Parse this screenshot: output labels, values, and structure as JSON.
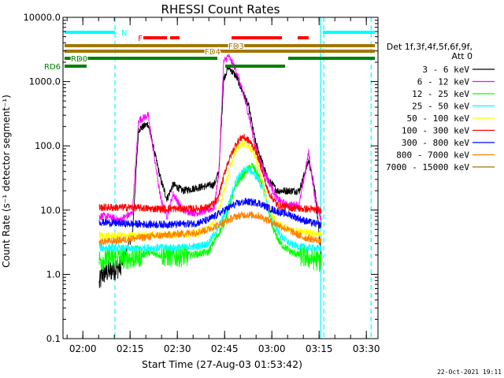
{
  "chart_data": {
    "type": "line",
    "title": "RHESSI Count Rates",
    "xlabel": "Start Time (27-Aug-03 01:53:42)",
    "ylabel": "Count Rate (s⁻¹ detector segment⁻¹)",
    "yscale": "log",
    "ylim": [
      0.1,
      10000
    ],
    "xlim_minutes": [
      0,
      100
    ],
    "x_ticks": [
      {
        "t": 6.3,
        "label": "02:00"
      },
      {
        "t": 21.3,
        "label": "02:15"
      },
      {
        "t": 36.3,
        "label": "02:30"
      },
      {
        "t": 51.3,
        "label": "02:45"
      },
      {
        "t": 66.3,
        "label": "03:00"
      },
      {
        "t": 81.3,
        "label": "03:15"
      },
      {
        "t": 96.3,
        "label": "03:30"
      }
    ],
    "y_ticks": [
      {
        "v": 0.1,
        "label": "0.1"
      },
      {
        "v": 1,
        "label": "1.0"
      },
      {
        "v": 10,
        "label": "10.0"
      },
      {
        "v": 100,
        "label": "100.0"
      },
      {
        "v": 1000,
        "label": "1000.0"
      },
      {
        "v": 10000,
        "label": "10000.0"
      }
    ],
    "legend": {
      "header": [
        "Det 1f,3f,4f,5f,6f,9f,",
        "Att 0"
      ],
      "placement": "right"
    },
    "series": [
      {
        "name": "3 - 6 keV",
        "color": "#000000",
        "t": [
          11.5,
          12.5,
          14,
          18,
          22,
          24,
          27,
          31,
          33,
          35,
          38,
          42,
          46,
          48,
          49.5,
          51,
          52.5,
          55,
          57,
          59,
          61,
          63,
          65,
          66.5,
          68,
          71,
          75,
          78,
          80,
          82
        ],
        "values": [
          0.7,
          1.0,
          1.1,
          1.3,
          4.0,
          180,
          220,
          30,
          15,
          25,
          20,
          22,
          24,
          25,
          40,
          1100,
          1700,
          1200,
          700,
          400,
          120,
          60,
          30,
          25,
          20,
          20,
          20,
          60,
          20,
          2.0
        ]
      },
      {
        "name": "6 - 12 keV",
        "color": "#ff00ff",
        "t": [
          11.5,
          14,
          18,
          22,
          24,
          27,
          31,
          33,
          35,
          38,
          42,
          46,
          48,
          49.5,
          51,
          52.5,
          55,
          57,
          59,
          61,
          63,
          65,
          68,
          71,
          75,
          78,
          80,
          82
        ],
        "values": [
          8,
          8,
          7,
          9,
          250,
          300,
          15,
          8,
          18,
          10,
          9,
          10,
          11,
          40,
          2000,
          2500,
          1500,
          700,
          300,
          100,
          50,
          30,
          15,
          12,
          12,
          80,
          15,
          7
        ]
      },
      {
        "name": "12 - 25 keV",
        "color": "#00ff00",
        "t": [
          11.5,
          16,
          22,
          24,
          27,
          31,
          35,
          40,
          46,
          49,
          51,
          55,
          58,
          60,
          62,
          64,
          66,
          69,
          72,
          75,
          78,
          82
        ],
        "values": [
          1.7,
          1.8,
          1.8,
          1.9,
          2.2,
          2.0,
          1.9,
          2.0,
          2.2,
          4,
          6,
          25,
          40,
          50,
          35,
          20,
          6,
          3,
          2.3,
          2.0,
          1.8,
          1.6
        ]
      },
      {
        "name": "25 - 50 keV",
        "color": "#00ffff",
        "t": [
          11.5,
          16,
          22,
          28,
          35,
          42,
          46,
          49,
          52,
          55,
          58,
          60,
          62,
          64,
          66,
          69,
          72,
          75,
          78,
          82
        ],
        "values": [
          2.6,
          2.6,
          2.5,
          2.6,
          2.6,
          2.7,
          3,
          5,
          10,
          30,
          45,
          40,
          30,
          18,
          8,
          4,
          3,
          2.7,
          2.6,
          2.5
        ]
      },
      {
        "name": "50 - 100 keV",
        "color": "#ffff00",
        "t": [
          11.5,
          16,
          22,
          28,
          35,
          42,
          46,
          49,
          52,
          55,
          57,
          59,
          61,
          63,
          65,
          68,
          72,
          76,
          82
        ],
        "values": [
          4.0,
          4.0,
          4.0,
          4.1,
          4.1,
          4.3,
          5,
          8,
          30,
          90,
          110,
          100,
          70,
          30,
          12,
          6,
          5,
          4.6,
          4.3
        ]
      },
      {
        "name": "100 - 300 keV",
        "color": "#ff0000",
        "t": [
          11.5,
          16,
          22,
          28,
          35,
          42,
          46,
          49,
          52,
          55,
          57,
          59,
          61,
          63,
          65,
          68,
          72,
          76,
          82
        ],
        "values": [
          11,
          11,
          11,
          10.5,
          10.5,
          10.5,
          11,
          14,
          50,
          110,
          140,
          120,
          90,
          45,
          20,
          12,
          11,
          10.5,
          10
        ]
      },
      {
        "name": "300 - 800 keV",
        "color": "#0000ff",
        "t": [
          11.5,
          16,
          22,
          28,
          35,
          42,
          46,
          49,
          52,
          55,
          58,
          62,
          65,
          68,
          72,
          76,
          82
        ],
        "values": [
          6.5,
          6.3,
          6.1,
          6.0,
          6.0,
          6.2,
          7,
          8.5,
          10.5,
          12.5,
          13.5,
          13,
          11,
          9.5,
          8.5,
          7,
          5.8
        ]
      },
      {
        "name": "800 - 7000 keV",
        "color": "#ff8000",
        "t": [
          11.5,
          16,
          22,
          28,
          35,
          42,
          46,
          49,
          52,
          55,
          58,
          62,
          65,
          68,
          72,
          76,
          82
        ],
        "values": [
          3.2,
          3.3,
          3.6,
          3.9,
          4.2,
          4.5,
          5.0,
          5.8,
          6.8,
          8.0,
          8.5,
          8.2,
          7.0,
          6.0,
          4.8,
          3.8,
          3.3
        ]
      },
      {
        "name": "7000 - 15000 keV",
        "color": "#a07800",
        "t": [],
        "values": []
      }
    ],
    "status_bars": [
      {
        "label": "N",
        "color": "#00ffff",
        "row": 1,
        "label_t": 18.5,
        "segments": [
          [
            0.5,
            16.5
          ],
          [
            82.5,
            99
          ]
        ]
      },
      {
        "label": "F",
        "color": "#ff0000",
        "row": 2,
        "label_t": 23.8,
        "segments": [
          [
            25.5,
            33
          ],
          [
            34,
            37
          ],
          [
            53.5,
            69.5
          ],
          [
            74.5,
            78
          ]
        ]
      },
      {
        "label": "FD3",
        "color": "#a07800",
        "row": 3,
        "label_t": 52.5,
        "segments": [
          [
            0.5,
            99
          ]
        ]
      },
      {
        "label": "FD4",
        "color": "#a07800",
        "row": 4,
        "label_t": 45,
        "segments": [
          [
            0.5,
            99
          ]
        ]
      },
      {
        "label": "RD0",
        "color": "#008000",
        "row": 5,
        "label_t": 2.5,
        "segments": [
          [
            0.5,
            49
          ],
          [
            71.5,
            99
          ]
        ]
      },
      {
        "label": "RD6",
        "color": "#008000",
        "row": 6,
        "label_t": -6,
        "segments": [
          [
            0.5,
            7.5
          ],
          [
            51.5,
            70.5
          ]
        ]
      }
    ],
    "vlines": [
      {
        "t": 16.5,
        "style": "dashed",
        "color": "#00ffff"
      },
      {
        "t": 81.8,
        "style": "solid",
        "color": "#00ffff"
      },
      {
        "t": 82.8,
        "style": "dashed",
        "color": "#00ffff"
      },
      {
        "t": 97.8,
        "style": "dashed",
        "color": "#00ffff"
      }
    ],
    "timestamp": "22-Oct-2021 19:11"
  }
}
